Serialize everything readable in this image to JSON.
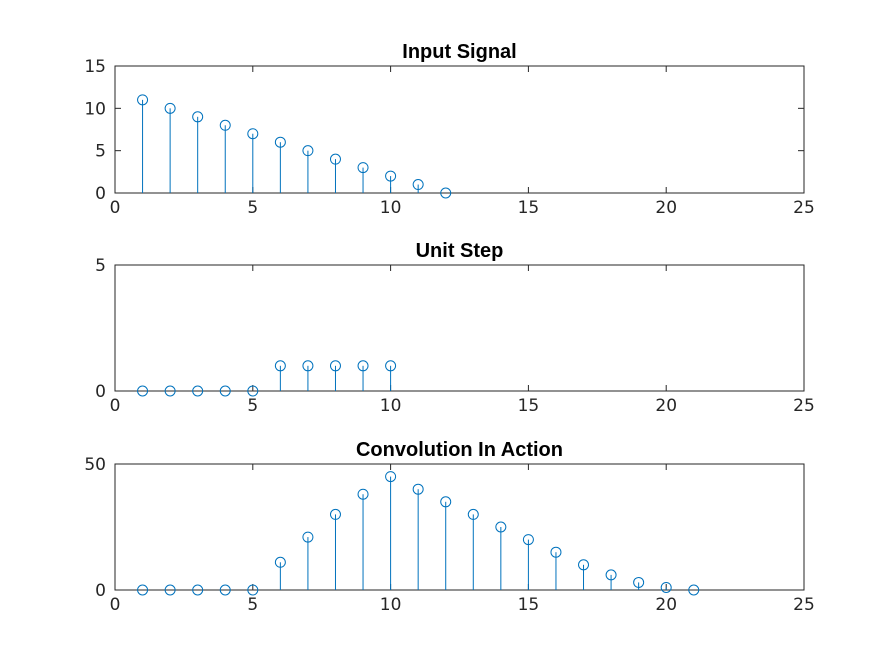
{
  "chart_data": [
    {
      "type": "stem",
      "title": "Input Signal",
      "xlim": [
        0,
        25
      ],
      "ylim": [
        0,
        15
      ],
      "xticks": [
        0,
        5,
        10,
        15,
        20,
        25
      ],
      "yticks": [
        0,
        5,
        10,
        15
      ],
      "x": [
        1,
        2,
        3,
        4,
        5,
        6,
        7,
        8,
        9,
        10,
        11,
        12
      ],
      "y": [
        11,
        10,
        9,
        8,
        7,
        6,
        5,
        4,
        3,
        2,
        1,
        0
      ],
      "color": "#0072BD",
      "marker": "circle"
    },
    {
      "type": "stem",
      "title": "Unit Step",
      "xlim": [
        0,
        25
      ],
      "ylim": [
        0,
        5
      ],
      "xticks": [
        0,
        5,
        10,
        15,
        20,
        25
      ],
      "yticks": [
        0,
        5
      ],
      "x": [
        1,
        2,
        3,
        4,
        5,
        6,
        7,
        8,
        9,
        10
      ],
      "y": [
        0,
        0,
        0,
        0,
        0,
        1,
        1,
        1,
        1,
        1
      ],
      "color": "#0072BD",
      "marker": "circle"
    },
    {
      "type": "stem",
      "title": "Convolution In Action",
      "xlim": [
        0,
        25
      ],
      "ylim": [
        0,
        50
      ],
      "xticks": [
        0,
        5,
        10,
        15,
        20,
        25
      ],
      "yticks": [
        0,
        50
      ],
      "x": [
        1,
        2,
        3,
        4,
        5,
        6,
        7,
        8,
        9,
        10,
        11,
        12,
        13,
        14,
        15,
        16,
        17,
        18,
        19,
        20,
        21
      ],
      "y": [
        0,
        0,
        0,
        0,
        0,
        11,
        21,
        30,
        38,
        45,
        40,
        35,
        30,
        25,
        20,
        15,
        10,
        6,
        3,
        1,
        0
      ],
      "color": "#0072BD",
      "marker": "circle"
    }
  ]
}
